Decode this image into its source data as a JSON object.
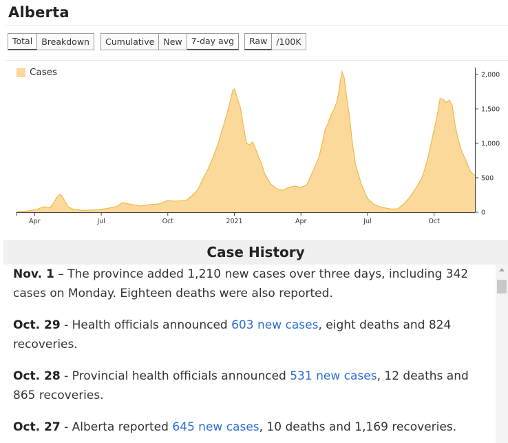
{
  "page": {
    "title": "Alberta"
  },
  "controls": {
    "group1": [
      {
        "label": "Total",
        "active": true
      },
      {
        "label": "Breakdown",
        "active": false
      }
    ],
    "group2": [
      {
        "label": "Cumulative",
        "active": false
      },
      {
        "label": "New",
        "active": false
      },
      {
        "label": "7-day avg",
        "active": true
      }
    ],
    "group3": [
      {
        "label": "Raw",
        "active": true
      },
      {
        "label": "/100K",
        "active": false
      }
    ]
  },
  "chart_data": {
    "type": "area",
    "series": [
      {
        "name": "Cases",
        "color": "#fbd99a",
        "stroke": "#f2b84b",
        "points": [
          [
            0,
            5
          ],
          [
            4,
            20
          ],
          [
            7,
            45
          ],
          [
            9,
            80
          ],
          [
            11,
            60
          ],
          [
            12.5,
            150
          ],
          [
            13.5,
            230
          ],
          [
            14.5,
            260
          ],
          [
            15.5,
            200
          ],
          [
            17,
            80
          ],
          [
            19,
            40
          ],
          [
            22,
            25
          ],
          [
            27,
            35
          ],
          [
            30,
            55
          ],
          [
            33,
            80
          ],
          [
            35,
            140
          ],
          [
            37,
            120
          ],
          [
            41,
            90
          ],
          [
            44,
            110
          ],
          [
            47,
            120
          ],
          [
            50,
            170
          ],
          [
            52,
            160
          ],
          [
            56,
            170
          ],
          [
            58,
            240
          ],
          [
            60,
            330
          ],
          [
            61.5,
            480
          ],
          [
            63,
            600
          ],
          [
            65,
            800
          ],
          [
            66.5,
            980
          ],
          [
            68,
            1200
          ],
          [
            70,
            1500
          ],
          [
            71.5,
            1770
          ],
          [
            72,
            1790
          ],
          [
            73,
            1650
          ],
          [
            74,
            1520
          ],
          [
            75,
            1250
          ],
          [
            76,
            1000
          ],
          [
            77,
            980
          ],
          [
            78,
            1020
          ],
          [
            79,
            920
          ],
          [
            80,
            800
          ],
          [
            81,
            700
          ],
          [
            82,
            560
          ],
          [
            84,
            410
          ],
          [
            86,
            340
          ],
          [
            88,
            320
          ],
          [
            90,
            360
          ],
          [
            92,
            380
          ],
          [
            94,
            360
          ],
          [
            96,
            400
          ],
          [
            97,
            500
          ],
          [
            98,
            600
          ],
          [
            99,
            700
          ],
          [
            100,
            800
          ],
          [
            101,
            1000
          ],
          [
            102,
            1200
          ],
          [
            103,
            1300
          ],
          [
            104,
            1420
          ],
          [
            105,
            1500
          ],
          [
            106,
            1620
          ],
          [
            107,
            1900
          ],
          [
            107.6,
            2040
          ],
          [
            108.3,
            1950
          ],
          [
            109,
            1700
          ],
          [
            110,
            1400
          ],
          [
            111,
            1000
          ],
          [
            112,
            700
          ],
          [
            113,
            550
          ],
          [
            114,
            400
          ],
          [
            115,
            300
          ],
          [
            116,
            200
          ],
          [
            118,
            120
          ],
          [
            120,
            80
          ],
          [
            122,
            60
          ],
          [
            124,
            45
          ],
          [
            126,
            50
          ],
          [
            128,
            120
          ],
          [
            130,
            220
          ],
          [
            132,
            350
          ],
          [
            134,
            500
          ],
          [
            135,
            640
          ],
          [
            136,
            800
          ],
          [
            137,
            1000
          ],
          [
            138,
            1200
          ],
          [
            139,
            1400
          ],
          [
            140,
            1650
          ],
          [
            141,
            1640
          ],
          [
            142,
            1590
          ],
          [
            143,
            1630
          ],
          [
            144,
            1550
          ],
          [
            145,
            1250
          ],
          [
            146,
            1050
          ],
          [
            147,
            900
          ],
          [
            148,
            800
          ],
          [
            149,
            700
          ],
          [
            150,
            590
          ],
          [
            151.5,
            530
          ]
        ]
      }
    ],
    "xlim": [
      0,
      151.5
    ],
    "ylim": [
      0,
      2100
    ],
    "x_ticks": [
      {
        "label": "Apr",
        "x": 6
      },
      {
        "label": "Jul",
        "x": 28
      },
      {
        "label": "Oct",
        "x": 50
      },
      {
        "label": "2021",
        "x": 72
      },
      {
        "label": "Apr",
        "x": 94
      },
      {
        "label": "Jul",
        "x": 116
      },
      {
        "label": "Oct",
        "x": 138
      }
    ],
    "y_ticks": [
      0,
      500,
      1000,
      1500,
      2000
    ],
    "y_tick_labels": [
      "0",
      "500",
      "1,000",
      "1,500",
      "2,000"
    ],
    "legend": "top-left",
    "y_axis_side": "right",
    "grid": false
  },
  "history": {
    "header": "Case History",
    "entries": [
      {
        "date": "Nov. 1",
        "pre": " – The province added 1,210 new cases over three days, including 342 cases on Monday. Eighteen deaths were also reported.",
        "link": "",
        "post": ""
      },
      {
        "date": "Oct. 29",
        "pre": " - Health officials announced ",
        "link": "603 new cases",
        "post": ", eight deaths and 824 recoveries."
      },
      {
        "date": "Oct. 28",
        "pre": " - Provincial health officials announced ",
        "link": "531 new cases",
        "post": ", 12 deaths and 865 recoveries."
      },
      {
        "date": "Oct. 27",
        "pre": " - Alberta reported ",
        "link": "645 new cases",
        "post": ", 10 deaths and 1,169 recoveries."
      }
    ]
  }
}
